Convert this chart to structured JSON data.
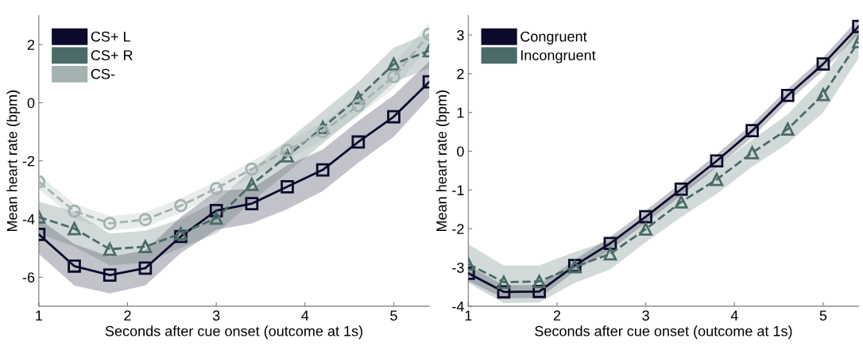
{
  "chart_data": [
    {
      "type": "line",
      "xlabel": "Seconds after cue onset (outcome at 1s)",
      "ylabel": "Mean heart rate (bpm)",
      "x": [
        1,
        1.4,
        1.8,
        2.2,
        2.6,
        3.0,
        3.4,
        3.8,
        4.2,
        4.6,
        5.0,
        5.4
      ],
      "xlim": [
        1,
        5.4
      ],
      "xticks": [
        1,
        2,
        3,
        4,
        5
      ],
      "ylim": [
        -7,
        3
      ],
      "yticks": [
        -6,
        -4,
        -2,
        0,
        2
      ],
      "grid": false,
      "legend": "top left",
      "series": [
        {
          "name": "CS+ L",
          "color": "#0b0a2b",
          "marker": "square",
          "line_style": "solid",
          "values": [
            -4.53,
            -5.62,
            -5.93,
            -5.69,
            -4.6,
            -3.71,
            -3.47,
            -2.89,
            -2.31,
            -1.35,
            -0.48,
            0.72
          ],
          "lower": [
            -5.2,
            -6.29,
            -6.56,
            -6.29,
            -5.17,
            -4.37,
            -4.15,
            -3.66,
            -3.04,
            -2.06,
            -1.17,
            0.17
          ],
          "upper": [
            -4.0,
            -4.86,
            -5.3,
            -5.08,
            -3.93,
            -3.04,
            -2.95,
            -2.15,
            -1.61,
            -0.63,
            0.26,
            1.42
          ]
        },
        {
          "name": "CS+ R",
          "color": "#4a6b68",
          "marker": "triangle",
          "line_style": "dashed",
          "values": [
            -3.93,
            -4.33,
            -5.04,
            -4.95,
            -4.5,
            -3.97,
            -2.81,
            -1.83,
            -0.85,
            0.17,
            1.33,
            1.79
          ],
          "lower": [
            -4.5,
            -4.95,
            -5.6,
            -5.5,
            -5.0,
            -4.5,
            -3.4,
            -2.4,
            -1.4,
            -0.4,
            0.7,
            1.2
          ],
          "upper": [
            -3.4,
            -3.75,
            -4.5,
            -4.4,
            -4.0,
            -3.4,
            -2.3,
            -1.3,
            -0.3,
            0.7,
            1.9,
            2.4
          ]
        },
        {
          "name": "CS-",
          "color": "#a3b2b1",
          "marker": "circle",
          "line_style": "dashed",
          "values": [
            -2.72,
            -3.73,
            -4.15,
            -4.02,
            -3.54,
            -2.95,
            -2.28,
            -1.64,
            -0.99,
            -0.1,
            0.9,
            2.36
          ],
          "lower": [
            -2.97,
            -3.98,
            -4.4,
            -4.27,
            -3.79,
            -3.2,
            -2.55,
            -1.95,
            -1.3,
            -0.45,
            0.5,
            1.95
          ],
          "upper": [
            -2.47,
            -3.48,
            -3.9,
            -3.77,
            -3.29,
            -2.7,
            -2.01,
            -1.33,
            -0.68,
            0.25,
            1.3,
            2.77
          ]
        }
      ]
    },
    {
      "type": "line",
      "xlabel": "Seconds after cue onset (outcome at 1s)",
      "ylabel": "Mean heart rate (bpm)",
      "x": [
        1,
        1.4,
        1.8,
        2.2,
        2.6,
        3.0,
        3.4,
        3.8,
        4.2,
        4.6,
        5.0,
        5.4
      ],
      "xlim": [
        1,
        5.4
      ],
      "xticks": [
        1,
        2,
        3,
        4,
        5
      ],
      "ylim": [
        -4,
        3.5
      ],
      "yticks": [
        -4,
        -3,
        -2,
        -1,
        0,
        1,
        2,
        3
      ],
      "grid": false,
      "legend": "top left",
      "series": [
        {
          "name": "Congruent",
          "color": "#0b0a2b",
          "marker": "square",
          "line_style": "solid",
          "values": [
            -3.15,
            -3.63,
            -3.62,
            -2.95,
            -2.38,
            -1.69,
            -0.98,
            -0.25,
            0.53,
            1.44,
            2.25,
            3.22
          ],
          "lower": [
            -3.35,
            -3.8,
            -3.79,
            -3.1,
            -2.55,
            -1.85,
            -1.14,
            -0.42,
            0.36,
            1.27,
            2.08,
            3.02
          ],
          "upper": [
            -2.95,
            -3.46,
            -3.45,
            -2.8,
            -2.21,
            -1.53,
            -0.82,
            -0.08,
            0.7,
            1.61,
            2.42,
            3.42
          ]
        },
        {
          "name": "Incongruent",
          "color": "#4a6b68",
          "marker": "triangle",
          "line_style": "dashed",
          "values": [
            -2.91,
            -3.38,
            -3.36,
            -2.98,
            -2.65,
            -2.01,
            -1.31,
            -0.73,
            -0.04,
            0.57,
            1.46,
            2.83
          ],
          "lower": [
            -3.4,
            -3.92,
            -3.9,
            -3.4,
            -3.05,
            -2.35,
            -1.7,
            -1.1,
            -0.4,
            0.2,
            1.0,
            2.4
          ],
          "upper": [
            -2.4,
            -2.95,
            -2.95,
            -2.6,
            -2.3,
            -1.7,
            -1.0,
            -0.4,
            0.3,
            0.95,
            1.9,
            3.2
          ]
        }
      ]
    }
  ]
}
